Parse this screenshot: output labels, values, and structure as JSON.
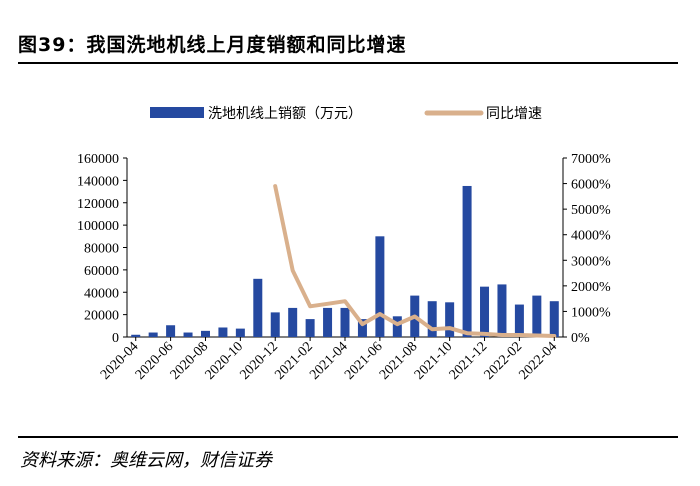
{
  "header": {
    "title": "图39：我国洗地机线上月度销额和同比增速"
  },
  "footer": {
    "source": "资料来源：奥维云网，财信证券"
  },
  "colors": {
    "bar": "#2549a0",
    "line": "#d9b08c"
  },
  "chart_data": {
    "type": "bar+line",
    "title": "我国洗地机线上月度销额和同比增速",
    "categories": [
      "2020-04",
      "2020-05",
      "2020-06",
      "2020-07",
      "2020-08",
      "2020-09",
      "2020-10",
      "2020-11",
      "2020-12",
      "2021-01",
      "2021-02",
      "2021-03",
      "2021-04",
      "2021-05",
      "2021-06",
      "2021-07",
      "2021-08",
      "2021-09",
      "2021-10",
      "2021-11",
      "2021-12",
      "2022-01",
      "2022-02",
      "2022-03",
      "2022-04"
    ],
    "tick_labels": [
      "2020-04",
      "2020-06",
      "2020-08",
      "2020-10",
      "2020-12",
      "2021-02",
      "2021-04",
      "2021-06",
      "2021-08",
      "2021-10",
      "2021-12",
      "2022-02",
      "2022-04"
    ],
    "series": [
      {
        "name": "洗地机线上销额（万元）",
        "type": "bar",
        "axis": "left",
        "values": [
          2000,
          4000,
          10500,
          4000,
          5500,
          8500,
          7500,
          52000,
          22000,
          26000,
          16000,
          26000,
          26000,
          16000,
          90000,
          18500,
          37000,
          32000,
          31000,
          135000,
          45000,
          47000,
          29000,
          37000,
          32000
        ]
      },
      {
        "name": "同比增速",
        "type": "line",
        "axis": "right",
        "values": [
          null,
          null,
          null,
          null,
          null,
          null,
          null,
          null,
          5900,
          2600,
          1200,
          1300,
          1400,
          500,
          900,
          500,
          800,
          300,
          350,
          150,
          120,
          80,
          80,
          60,
          40
        ]
      }
    ],
    "left_axis": {
      "min": 0,
      "max": 160000,
      "step": 20000,
      "ticks": [
        "0",
        "20000",
        "40000",
        "60000",
        "80000",
        "100000",
        "120000",
        "140000",
        "160000"
      ]
    },
    "right_axis": {
      "min": 0,
      "max": 7000,
      "step": 1000,
      "ticks": [
        "0%",
        "1000%",
        "2000%",
        "3000%",
        "4000%",
        "5000%",
        "6000%",
        "7000%"
      ]
    },
    "legend": {
      "position": "top",
      "items": [
        "洗地机线上销额（万元）",
        "同比增速"
      ]
    },
    "grid": false
  }
}
